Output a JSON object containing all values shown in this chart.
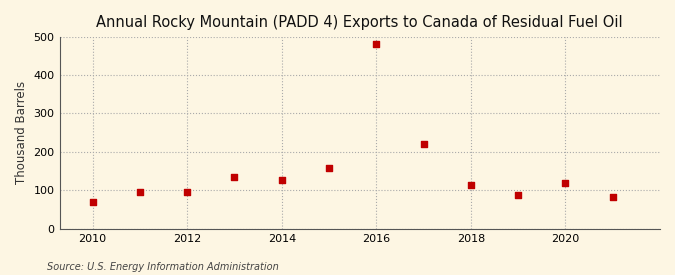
{
  "title": "Annual Rocky Mountain (PADD 4) Exports to Canada of Residual Fuel Oil",
  "ylabel": "Thousand Barrels",
  "source": "Source: U.S. Energy Information Administration",
  "years": [
    2010,
    2011,
    2012,
    2013,
    2014,
    2015,
    2016,
    2017,
    2018,
    2019,
    2020,
    2021
  ],
  "values": [
    70,
    95,
    95,
    135,
    128,
    158,
    482,
    220,
    113,
    88,
    118,
    83
  ],
  "marker_color": "#c00000",
  "marker_size": 5,
  "background_color": "#fdf6e3",
  "ylim": [
    0,
    500
  ],
  "yticks": [
    0,
    100,
    200,
    300,
    400,
    500
  ],
  "xticks": [
    2010,
    2012,
    2014,
    2016,
    2018,
    2020
  ],
  "xlim_left": 2009.3,
  "xlim_right": 2022.0,
  "title_fontsize": 10.5,
  "label_fontsize": 8.5,
  "tick_fontsize": 8,
  "source_fontsize": 7
}
